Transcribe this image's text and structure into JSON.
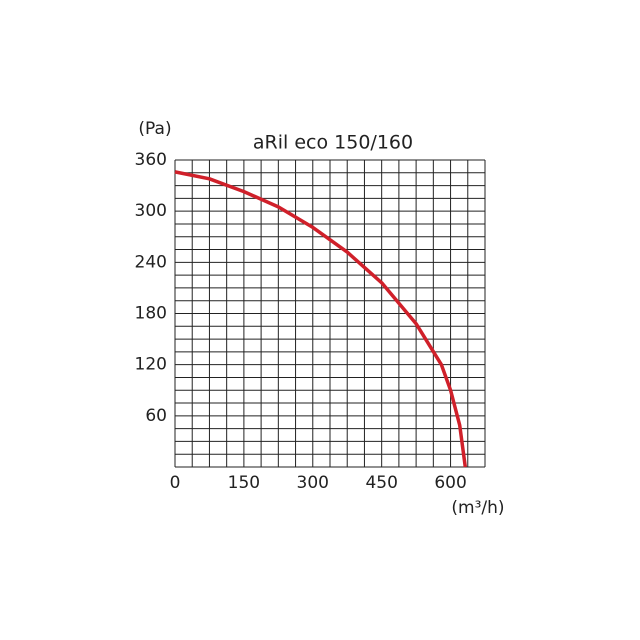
{
  "chart_data": {
    "type": "line",
    "title": "aRil eco 150/160",
    "y_label": "(Pa)",
    "x_label": "(m³/h)",
    "x": [
      0,
      75,
      150,
      225,
      300,
      375,
      450,
      525,
      580,
      600,
      620,
      632
    ],
    "series": [
      {
        "name": "aRil eco 150/160",
        "color": "#d0202a",
        "values": [
          346,
          338,
          323,
          305,
          281,
          252,
          216,
          168,
          120,
          90,
          49,
          0
        ]
      }
    ],
    "xlim": [
      0,
      675
    ],
    "ylim": [
      0,
      360
    ],
    "xticks": [
      0,
      150,
      300,
      450,
      600
    ],
    "yticks": [
      60,
      120,
      180,
      240,
      300,
      360
    ],
    "grid": true,
    "minor_grid": {
      "x": 37.5,
      "y": 15
    }
  }
}
